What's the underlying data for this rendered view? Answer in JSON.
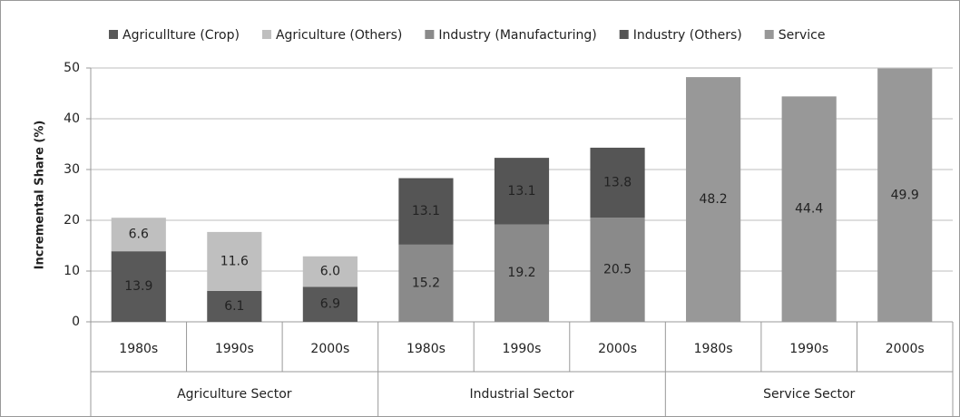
{
  "chart_data": {
    "type": "stacked_bar",
    "y_label": "Incremental Share (%)",
    "categories": [
      "1980s",
      "1990s",
      "2000s",
      "1980s",
      "1990s",
      "2000s",
      "1980s",
      "1990s",
      "2000s"
    ],
    "groups": [
      "Agriculture Sector",
      "Industrial Sector",
      "Service Sector"
    ],
    "series": [
      {
        "name": "Agricullture (Crop)",
        "color": "#595959",
        "values": [
          13.9,
          6.1,
          6.9,
          null,
          null,
          null,
          null,
          null,
          null
        ],
        "value_labels": [
          "13.9",
          "6.1",
          "6.9",
          null,
          null,
          null,
          null,
          null,
          null
        ]
      },
      {
        "name": "Agriculture (Others)",
        "color": "#bfbfbf",
        "values": [
          6.6,
          11.6,
          6.0,
          null,
          null,
          null,
          null,
          null,
          null
        ],
        "value_labels": [
          "6.6",
          "11.6",
          "6.0",
          null,
          null,
          null,
          null,
          null,
          null
        ]
      },
      {
        "name": "Industry (Manufacturing)",
        "color": "#8a8a8a",
        "values": [
          null,
          null,
          null,
          15.2,
          19.2,
          20.5,
          null,
          null,
          null
        ],
        "value_labels": [
          null,
          null,
          null,
          "15.2",
          "19.2",
          "20.5",
          null,
          null,
          null
        ]
      },
      {
        "name": "Industry (Others)",
        "color": "#555555",
        "values": [
          null,
          null,
          null,
          13.1,
          13.1,
          13.8,
          null,
          null,
          null
        ],
        "value_labels": [
          null,
          null,
          null,
          "13.1",
          "13.1",
          "13.8",
          null,
          null,
          null
        ]
      },
      {
        "name": "Service",
        "color": "#989898",
        "values": [
          null,
          null,
          null,
          null,
          null,
          null,
          48.2,
          44.4,
          49.9
        ],
        "value_labels": [
          null,
          null,
          null,
          null,
          null,
          null,
          "48.2",
          "44.4",
          "49.9"
        ]
      }
    ],
    "ylim": [
      0,
      50
    ],
    "yticks": [
      0,
      10,
      20,
      30,
      40,
      50
    ],
    "grid": true,
    "legend": "top"
  }
}
